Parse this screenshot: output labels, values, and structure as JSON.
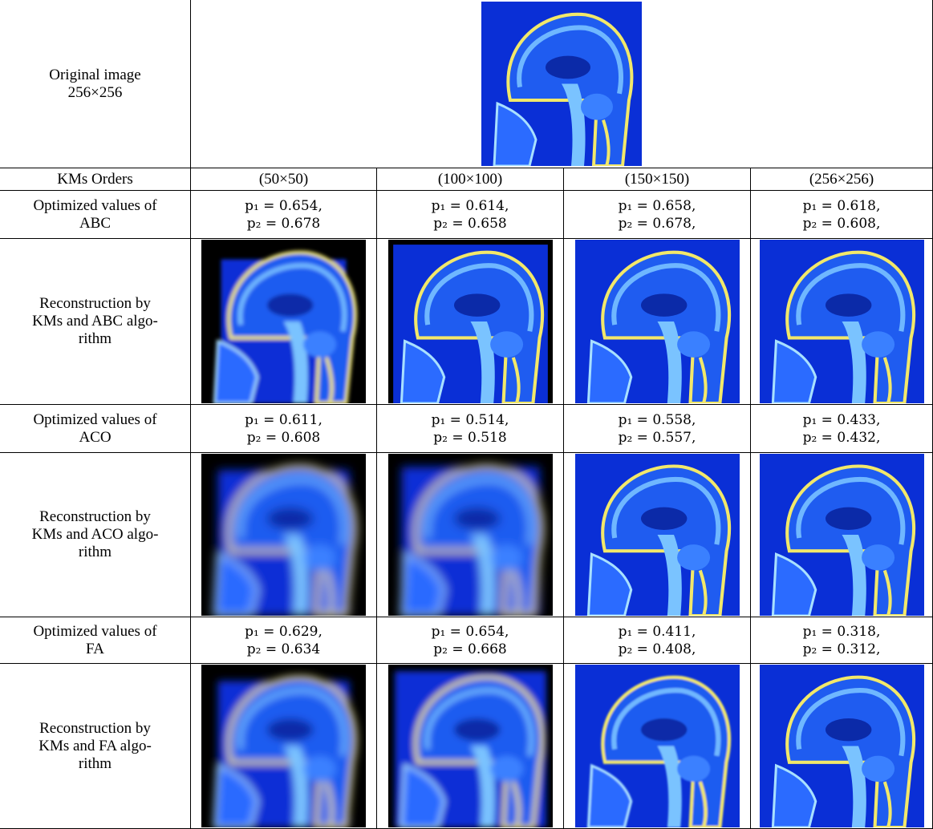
{
  "table": {
    "original": {
      "label": [
        "Original image",
        "256×256"
      ]
    },
    "header": [
      "KMs Orders",
      "(50×50)",
      "(100×100)",
      "(150×150)",
      "(256×256)"
    ],
    "rows": [
      {
        "label": [
          "Optimized values of",
          "ABC"
        ],
        "cells": [
          [
            "p₁ = 0.654,",
            "p₂ =  0.678"
          ],
          [
            "p₁ = 0.614,",
            "p₂ = 0.658"
          ],
          [
            "p₁ = 0.658,",
            "p₂ = 0.678,"
          ],
          [
            "p₁ = 0.618,",
            "p₂ = 0.608,"
          ]
        ]
      },
      {
        "label": [
          "Reconstruction by",
          "KMs and ABC algo-",
          "rithm"
        ]
      },
      {
        "label": [
          "Optimized values of",
          "ACO"
        ],
        "cells": [
          [
            "p₁ = 0.611,",
            "p₂ =  0.608"
          ],
          [
            "p₁ = 0.514,",
            "p₂ = 0.518"
          ],
          [
            "p₁ = 0.558,",
            "p₂ = 0.557,"
          ],
          [
            "p₁ = 0.433,",
            "p₂ = 0.432,"
          ]
        ]
      },
      {
        "label": [
          "Reconstruction by",
          "KMs and ACO algo-",
          "rithm"
        ]
      },
      {
        "label": [
          "Optimized values of",
          "FA"
        ],
        "cells": [
          [
            "p₁ = 0.629,",
            "p₂ =  0.634"
          ],
          [
            "p₁ = 0.654,",
            "p₂ = 0.668"
          ],
          [
            "p₁ = 0.411,",
            "p₂ = 0.408,"
          ],
          [
            "p₁ = 0.318,",
            "p₂ = 0.312,"
          ]
        ]
      },
      {
        "label": [
          "Reconstruction by",
          "KMs and FA algo-",
          "rithm"
        ]
      }
    ]
  }
}
